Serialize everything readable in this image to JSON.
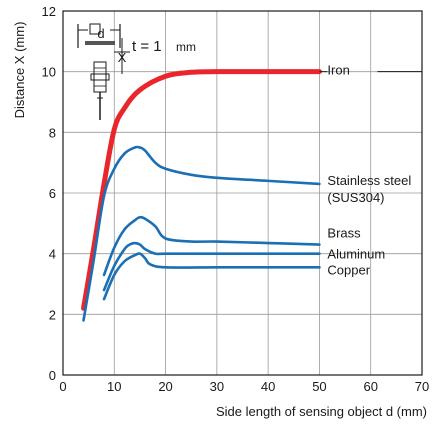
{
  "chart_data": {
    "type": "line",
    "xlabel": "Side length of sensing object d (mm)",
    "ylabel": "Distance X (mm)",
    "xlim": [
      0,
      70
    ],
    "ylim": [
      0,
      12
    ],
    "xticks": [
      0,
      10,
      20,
      30,
      40,
      50,
      60,
      70
    ],
    "yticks": [
      2,
      4,
      6,
      8,
      10,
      12
    ],
    "grid": true,
    "legend": "labels at line ends (right side)",
    "series": [
      {
        "name": "Iron",
        "color": "#e8262b",
        "x": [
          4,
          6,
          8,
          10,
          12,
          15,
          20,
          25,
          30,
          40,
          50
        ],
        "y": [
          2.2,
          4.2,
          6.3,
          8.1,
          8.8,
          9.4,
          9.85,
          9.98,
          10.0,
          10.0,
          10.0
        ]
      },
      {
        "name": "Stainless steel\n(SUS304)",
        "color": "#1a6fb5",
        "x": [
          4,
          6,
          8,
          10,
          12,
          14,
          15,
          16,
          18,
          20,
          25,
          30,
          40,
          50
        ],
        "y": [
          1.8,
          3.8,
          5.9,
          6.8,
          7.3,
          7.5,
          7.5,
          7.4,
          7.0,
          6.8,
          6.6,
          6.5,
          6.4,
          6.3
        ]
      },
      {
        "name": "Brass",
        "color": "#1a6fb5",
        "x": [
          8,
          10,
          12,
          14,
          15,
          16,
          18,
          20,
          25,
          30,
          40,
          50
        ],
        "y": [
          3.3,
          4.2,
          4.8,
          5.1,
          5.2,
          5.15,
          4.9,
          4.5,
          4.4,
          4.4,
          4.35,
          4.3
        ]
      },
      {
        "name": "Aluminum",
        "color": "#1a6fb5",
        "x": [
          8,
          10,
          12,
          13,
          14,
          15,
          16,
          18,
          20,
          30,
          40,
          50
        ],
        "y": [
          2.8,
          3.6,
          4.15,
          4.3,
          4.35,
          4.3,
          4.15,
          4.0,
          4.0,
          4.0,
          4.0,
          4.0
        ]
      },
      {
        "name": "Copper",
        "color": "#1a6fb5",
        "x": [
          8,
          10,
          12,
          14,
          15,
          16,
          17,
          20,
          30,
          40,
          50
        ],
        "y": [
          2.5,
          3.3,
          3.75,
          3.95,
          4.0,
          3.85,
          3.65,
          3.55,
          3.55,
          3.55,
          3.55
        ]
      }
    ],
    "annotations": {
      "inset_d": "d",
      "inset_x": "X",
      "thickness": "t = 1",
      "thickness_unit": "mm"
    }
  }
}
